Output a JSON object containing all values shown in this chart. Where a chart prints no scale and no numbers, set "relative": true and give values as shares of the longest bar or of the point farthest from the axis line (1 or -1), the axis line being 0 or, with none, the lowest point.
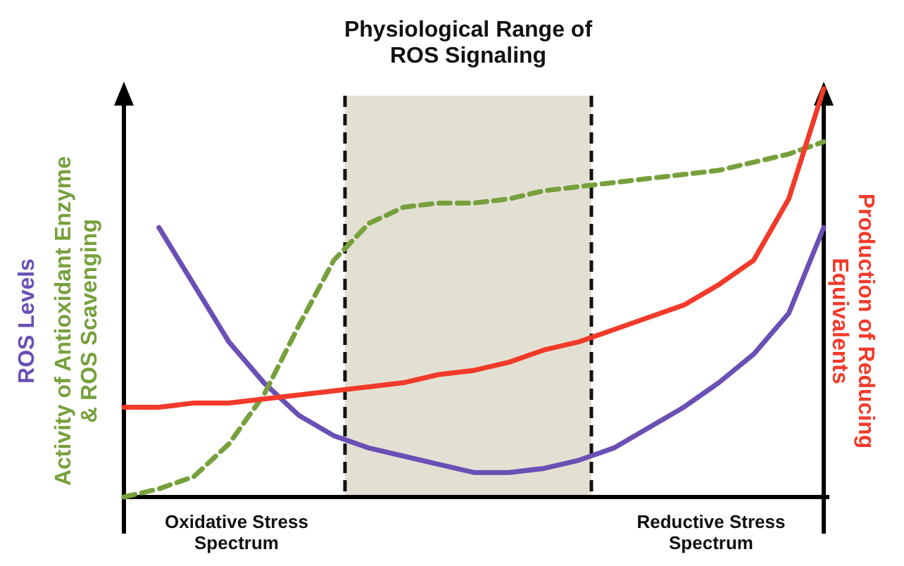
{
  "chart_data": {
    "type": "line",
    "relative": true,
    "categories": [
      null,
      null,
      null,
      null,
      null,
      null,
      null,
      null,
      null,
      null,
      null,
      null,
      null,
      null,
      null,
      null,
      null,
      null,
      null,
      null,
      null
    ],
    "title": "Physiological Range of ROS Signaling",
    "annotations": [
      "Oxidative Stress Spectrum",
      "Reductive Stress Spectrum"
    ],
    "series": [
      {
        "name": "ROS Levels",
        "color": "#6a4fb5",
        "line_style": "solid",
        "values": [
          null,
          0.66,
          0.52,
          0.38,
          0.28,
          0.2,
          0.15,
          0.12,
          0.1,
          0.08,
          0.06,
          0.06,
          0.07,
          0.09,
          0.12,
          0.17,
          0.22,
          0.28,
          0.35,
          0.45,
          0.66
        ]
      },
      {
        "name": "Activity of Antioxidant Enzyme & ROS Scavenging",
        "color": "#77a03c",
        "line_style": "dashed",
        "values": [
          0,
          0.02,
          0.05,
          0.13,
          0.25,
          0.42,
          0.58,
          0.67,
          0.71,
          0.72,
          0.72,
          0.73,
          0.75,
          0.76,
          0.77,
          0.78,
          0.79,
          0.8,
          0.82,
          0.84,
          0.87
        ]
      },
      {
        "name": "Production of Reducing Equivalents",
        "color": "#f23a2a",
        "line_style": "solid",
        "values": [
          0.22,
          0.22,
          0.23,
          0.23,
          0.24,
          0.25,
          0.26,
          0.27,
          0.28,
          0.3,
          0.31,
          0.33,
          0.36,
          0.38,
          0.41,
          0.44,
          0.47,
          0.52,
          0.58,
          0.73,
          1
        ]
      }
    ]
  }
}
